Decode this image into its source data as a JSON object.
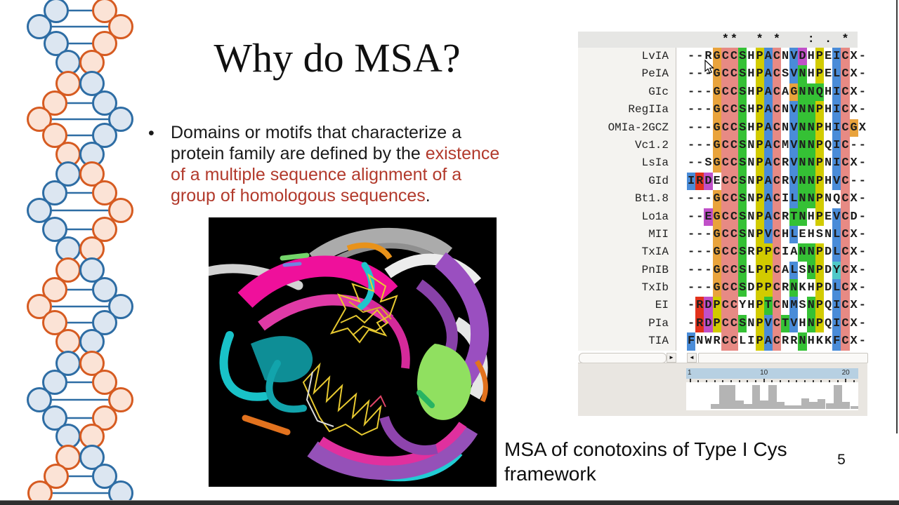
{
  "slide": {
    "title": "Why do MSA?",
    "bullet_glyph": "•",
    "bullet_lines": [
      [
        {
          "t": "Domains or motifs that characterize a",
          "r": 0
        }
      ],
      [
        {
          "t": "protein family are defined by the ",
          "r": 0
        },
        {
          "t": "existence",
          "r": 1
        }
      ],
      [
        {
          "t": "of a multiple sequence alignment of a",
          "r": 1
        }
      ],
      [
        {
          "t": "group of homologous sequences",
          "r": 1
        },
        {
          "t": ".",
          "r": 0
        }
      ]
    ],
    "accent_red": "#b23a2c",
    "caption_line1": "MSA of conotoxins of Type I Cys",
    "caption_line2": "framework",
    "page_number": "5"
  },
  "msa": {
    "conservation": "    **  * *   : . *  ",
    "color_map": {
      "w": "#ffffff",
      "o": "#e9a33c",
      "p": "#e78a84",
      "g": "#35c135",
      "y": "#d2cb00",
      "b": "#4a8cd8",
      "m": "#c050c8",
      "r": "#e2321c",
      "c": "#4fc8c8"
    },
    "rows": [
      {
        "name": "LvIA",
        "seq": "--RGCCSHPACNVDHPEICX-",
        "colors": "wwwoppgwybpwbmwywbpww"
      },
      {
        "name": "PeIA",
        "seq": "---GCCSHPACSVNHPELCX-",
        "colors": "wwwoppgwybpwbgwywbpww"
      },
      {
        "name": "GIc",
        "seq": "---GCCSHPACAGNNQHICX-",
        "colors": "wwwoppgwybpwogggwbpww"
      },
      {
        "name": "RegIIa",
        "seq": "---GCCSHPACNVNNPHICX-",
        "colors": "wwwoppgwybpwbggywbpww"
      },
      {
        "name": "OMIa-2GCZ",
        "seq": "---GCCSHPACNVNNPHICGX",
        "colors": "wwwoppgwybpwbggywbpow"
      },
      {
        "name": "Vc1.2",
        "seq": "---GCCSNPACMVNNPQIC--",
        "colors": "wwwoppgwybpwbggywbpww"
      },
      {
        "name": "LsIa",
        "seq": "--SGCCSNPACRVNNPNICX-",
        "colors": "wwwoppgwybpwbggywbpww"
      },
      {
        "name": "GId",
        "seq": "IRDECCSNPACRVNNPHVC--",
        "colors": "brmwppgwybpwbggywbpww"
      },
      {
        "name": "Bt1.8",
        "seq": "---GCCSNPACILNNPNQCX-",
        "colors": "wwwoppgwybpwbggywwpww"
      },
      {
        "name": "Lo1a",
        "seq": "--EGCCSNPACRTNHPEVCD-",
        "colors": "wwmoppgwybpwggwywbpww"
      },
      {
        "name": "MII",
        "seq": "---GCCSNPVCHLEHSNLCX-",
        "colors": "wwwoppgwybpwbwwwwbpww"
      },
      {
        "name": "TxIA",
        "seq": "---GCCSRPPCIANNPDLCX-",
        "colors": "wwwoppgwyypwwggywbpww"
      },
      {
        "name": "PnIB",
        "seq": "---GCCSLPPCALSNPDYCX-",
        "colors": "wwwoppgwyypwbwgywcpww"
      },
      {
        "name": "TxIb",
        "seq": "---GCCSDPPCRNKHPDLCX-",
        "colors": "wwwoppgwyypwgwwywbpww"
      },
      {
        "name": "EI",
        "seq": "-RDPCCYHPTCNMSNPQICX-",
        "colors": "wrmyppwwygpwbwgywbpww"
      },
      {
        "name": "PIa",
        "seq": "-RDPCCSNPVCTVHNPQICX-",
        "colors": "wrmyppgwybpgbwgywbpww"
      },
      {
        "name": "TIA",
        "seq": "FNWRCCLIPACRRNHKKFCX-",
        "colors": "bwwwppwwybpwwgwwwbpww"
      }
    ],
    "scroll": {
      "left_panel_arrow": "►",
      "align_panel_arrow": "◄"
    },
    "ruler": {
      "cols": 21,
      "col_width": 11.65,
      "labels": [
        {
          "text": "1",
          "col": 1
        },
        {
          "text": "10",
          "col": 10
        },
        {
          "text": "20",
          "col": 20
        }
      ]
    },
    "histogram": [
      0,
      0,
      0,
      22,
      100,
      100,
      35,
      20,
      100,
      35,
      100,
      28,
      14,
      14,
      45,
      28,
      40,
      24,
      100,
      28,
      12
    ],
    "histogram_color": "#b4b4b4",
    "ruler_color": "#b7d0e2"
  },
  "dna": {
    "stroke_blue": "#2e6da4",
    "fill_blue": "#dce6f1",
    "stroke_orange": "#d65b21",
    "fill_orange": "#fbe3d6",
    "line_color": "#2e6da4",
    "radius": 16.5,
    "rungs": [
      [
        15,
        80,
        149,
        "b"
      ],
      [
        38,
        56,
        172,
        "b"
      ],
      [
        62,
        80,
        149,
        "b"
      ],
      [
        89,
        97,
        131,
        "b"
      ],
      [
        119,
        97,
        131,
        "o"
      ],
      [
        147,
        78,
        149,
        "o"
      ],
      [
        170,
        56,
        172,
        "o"
      ],
      [
        193,
        78,
        149,
        "o"
      ],
      [
        220,
        97,
        131,
        "o"
      ],
      [
        248,
        97,
        131,
        "b"
      ],
      [
        275,
        78,
        149,
        "b"
      ],
      [
        300,
        56,
        172,
        "b"
      ],
      [
        327,
        78,
        149,
        "b"
      ],
      [
        355,
        97,
        131,
        "b"
      ],
      [
        385,
        97,
        131,
        "o"
      ],
      [
        413,
        78,
        149,
        "o"
      ],
      [
        437,
        56,
        172,
        "o"
      ],
      [
        460,
        78,
        149,
        "o"
      ],
      [
        487,
        97,
        131,
        "o"
      ],
      [
        518,
        97,
        131,
        "b"
      ],
      [
        545,
        78,
        149,
        "b"
      ],
      [
        570,
        56,
        172,
        "b"
      ],
      [
        596,
        78,
        149,
        "b"
      ],
      [
        622,
        97,
        131,
        "b"
      ],
      [
        652,
        97,
        131,
        "o"
      ],
      [
        679,
        80,
        149,
        "o"
      ],
      [
        703,
        57,
        172,
        "o"
      ]
    ]
  }
}
